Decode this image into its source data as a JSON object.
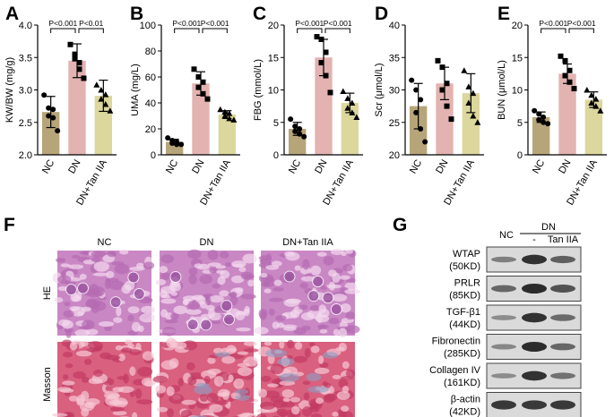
{
  "colors": {
    "NC": "#b7a57a",
    "DN": "#e2b3b1",
    "DN+Tan IIA": "#dcd79c",
    "HE_bg": "#c987c4",
    "Masson_bg": "#d9607f",
    "blot_bg": "#dadada",
    "band": "#222222"
  },
  "chart_data": [
    {
      "panel": "A",
      "type": "bar",
      "categories": [
        "NC",
        "DN",
        "DN+Tan IIA"
      ],
      "ylabel": "KW/BW (mg/g)",
      "ylim": [
        2.0,
        4.0
      ],
      "yticks": [
        "2.0",
        "2.5",
        "3.0",
        "3.5",
        "4.0"
      ],
      "ytick_values": [
        2.0,
        2.5,
        3.0,
        3.5,
        4.0
      ],
      "values": [
        2.66,
        3.45,
        2.91
      ],
      "errors": [
        0.24,
        0.26,
        0.24
      ],
      "points": [
        [
          2.92,
          2.72,
          2.7,
          2.6,
          2.57,
          2.37
        ],
        [
          3.7,
          3.55,
          3.42,
          3.48,
          3.32,
          3.18
        ],
        [
          3.08,
          3.0,
          2.93,
          2.86,
          2.78,
          2.68
        ]
      ],
      "comparisons": [
        {
          "from": 0,
          "to": 1,
          "label": "P<0.001"
        },
        {
          "from": 1,
          "to": 2,
          "label": "P<0.01"
        }
      ]
    },
    {
      "panel": "B",
      "type": "bar",
      "categories": [
        "NC",
        "DN",
        "DN+Tan IIA"
      ],
      "ylabel": "UMA (mg/L)",
      "ylim": [
        0,
        100
      ],
      "yticks": [
        "0",
        "20",
        "40",
        "60",
        "80",
        "100"
      ],
      "ytick_values": [
        0,
        20,
        40,
        60,
        80,
        100
      ],
      "values": [
        10,
        55,
        31
      ],
      "errors": [
        2,
        9,
        3
      ],
      "points": [
        [
          13,
          11,
          10,
          9,
          8,
          8
        ],
        [
          66,
          60,
          56,
          52,
          47,
          43
        ],
        [
          35,
          33,
          32,
          30,
          28,
          27
        ]
      ],
      "comparisons": [
        {
          "from": 0,
          "to": 1,
          "label": "P<0.001"
        },
        {
          "from": 1,
          "to": 2,
          "label": "P<0.001"
        }
      ]
    },
    {
      "panel": "C",
      "type": "bar",
      "categories": [
        "NC",
        "DN",
        "DN+Tan IIA"
      ],
      "ylabel": "FBG (mmol/L)",
      "ylim": [
        0,
        20
      ],
      "yticks": [
        "0",
        "5",
        "10",
        "15",
        "20"
      ],
      "ytick_values": [
        0,
        5,
        10,
        15,
        20
      ],
      "values": [
        4.0,
        15.0,
        8.0
      ],
      "errors": [
        1.0,
        2.8,
        1.5
      ],
      "points": [
        [
          5.5,
          4.4,
          4.0,
          3.6,
          3.2,
          2.8
        ],
        [
          18.2,
          17.8,
          15.8,
          14.2,
          12.2,
          9.6
        ],
        [
          9.8,
          8.7,
          8.0,
          7.2,
          6.5,
          5.8
        ]
      ],
      "comparisons": [
        {
          "from": 0,
          "to": 1,
          "label": "P<0.001"
        },
        {
          "from": 1,
          "to": 2,
          "label": "P<0.001"
        }
      ]
    },
    {
      "panel": "D",
      "type": "bar",
      "categories": [
        "NC",
        "DN",
        "DN+Tan IIA"
      ],
      "ylabel": "Scr (μmol/L)",
      "ylim": [
        20,
        40
      ],
      "yticks": [
        "20",
        "25",
        "30",
        "35",
        "40"
      ],
      "ytick_values": [
        20,
        25,
        30,
        35,
        40
      ],
      "values": [
        27.5,
        31.0,
        29.5
      ],
      "errors": [
        3.5,
        2.5,
        3.0
      ],
      "points": [
        [
          31.5,
          30.0,
          28.5,
          26.5,
          24.0,
          22.0
        ],
        [
          34.5,
          33.5,
          31.0,
          30.0,
          27.5,
          25.5
        ],
        [
          33.0,
          30.5,
          29.5,
          28.0,
          26.0,
          25.0
        ]
      ],
      "comparisons": []
    },
    {
      "panel": "E",
      "type": "bar",
      "categories": [
        "NC",
        "DN",
        "DN+Tan IIA"
      ],
      "ylabel": "BUN (μmol/L)",
      "ylim": [
        0,
        20
      ],
      "yticks": [
        "0",
        "5",
        "10",
        "15",
        "20"
      ],
      "ytick_values": [
        0,
        5,
        10,
        15,
        20
      ],
      "values": [
        5.8,
        12.5,
        8.5
      ],
      "errors": [
        0.8,
        1.5,
        1.2
      ],
      "points": [
        [
          6.8,
          6.3,
          5.8,
          5.4,
          5.0,
          4.8
        ],
        [
          15.2,
          14.5,
          13.0,
          12.2,
          11.2,
          10.2
        ],
        [
          10.0,
          9.2,
          8.6,
          8.0,
          7.5,
          6.8
        ]
      ],
      "comparisons": [
        {
          "from": 0,
          "to": 1,
          "label": "P<0.001"
        },
        {
          "from": 1,
          "to": 2,
          "label": "P<0.001"
        }
      ]
    }
  ],
  "histology": {
    "panel": "F",
    "columns": [
      "NC",
      "DN",
      "DN+Tan IIA"
    ],
    "rows": [
      "HE",
      "Masson"
    ]
  },
  "western_blot": {
    "panel": "G",
    "header_nc": "NC",
    "header_dn": "DN",
    "header_minus": "-",
    "header_tan": "Tan IIA",
    "proteins": [
      {
        "name": "WTAP",
        "kd": "(50KD)",
        "intensity": [
          0.35,
          0.95,
          0.6
        ]
      },
      {
        "name": "PRLR",
        "kd": "(85KD)",
        "intensity": [
          0.55,
          1.0,
          0.7
        ]
      },
      {
        "name": "TGF-β1",
        "kd": "(44KD)",
        "intensity": [
          0.25,
          0.95,
          0.5
        ]
      },
      {
        "name": "Fibronectin",
        "kd": "(285KD)",
        "intensity": [
          0.3,
          1.0,
          0.55
        ]
      },
      {
        "name": "Collagen IV",
        "kd": "(161KD)",
        "intensity": [
          0.25,
          0.95,
          0.45
        ]
      },
      {
        "name": "β-actin",
        "kd": "(42KD)",
        "intensity": [
          0.9,
          0.9,
          0.9
        ]
      }
    ]
  }
}
